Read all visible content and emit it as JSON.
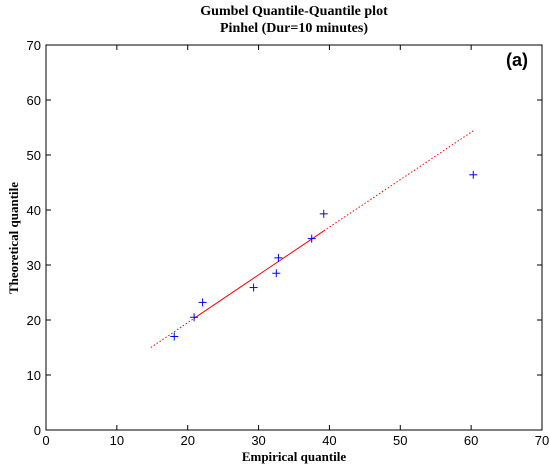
{
  "chart_data": {
    "type": "scatter",
    "title": "Gumbel Quantile-Quantile plot",
    "subtitle": "Pinhel (Dur=10 minutes)",
    "panel_label": "(a)",
    "xlabel": "Empirical quantile",
    "ylabel": "Theoretical quantile",
    "xlim": [
      0,
      70
    ],
    "ylim": [
      0,
      70
    ],
    "xticks": [
      0,
      10,
      20,
      30,
      40,
      50,
      60,
      70
    ],
    "yticks": [
      0,
      10,
      20,
      30,
      40,
      50,
      60,
      70
    ],
    "grid": false,
    "series": [
      {
        "marker": "+",
        "color": "#0000ff",
        "points": [
          {
            "x": 18.1,
            "y": 17.0
          },
          {
            "x": 20.9,
            "y": 20.5
          },
          {
            "x": 22.1,
            "y": 23.2
          },
          {
            "x": 29.3,
            "y": 25.9
          },
          {
            "x": 32.5,
            "y": 28.5
          },
          {
            "x": 32.8,
            "y": 31.3
          },
          {
            "x": 37.5,
            "y": 34.8
          },
          {
            "x": 39.2,
            "y": 39.3
          },
          {
            "x": 60.3,
            "y": 46.4
          }
        ]
      }
    ],
    "reference_line": {
      "color": "#ff0000",
      "solid_segment": [
        [
          20.9,
          20.3
        ],
        [
          39.2,
          36.2
        ]
      ],
      "dotted_segments": [
        [
          [
            14.8,
            15.0
          ],
          [
            20.9,
            20.3
          ]
        ],
        [
          [
            39.2,
            36.2
          ],
          [
            60.3,
            54.4
          ]
        ]
      ]
    }
  }
}
